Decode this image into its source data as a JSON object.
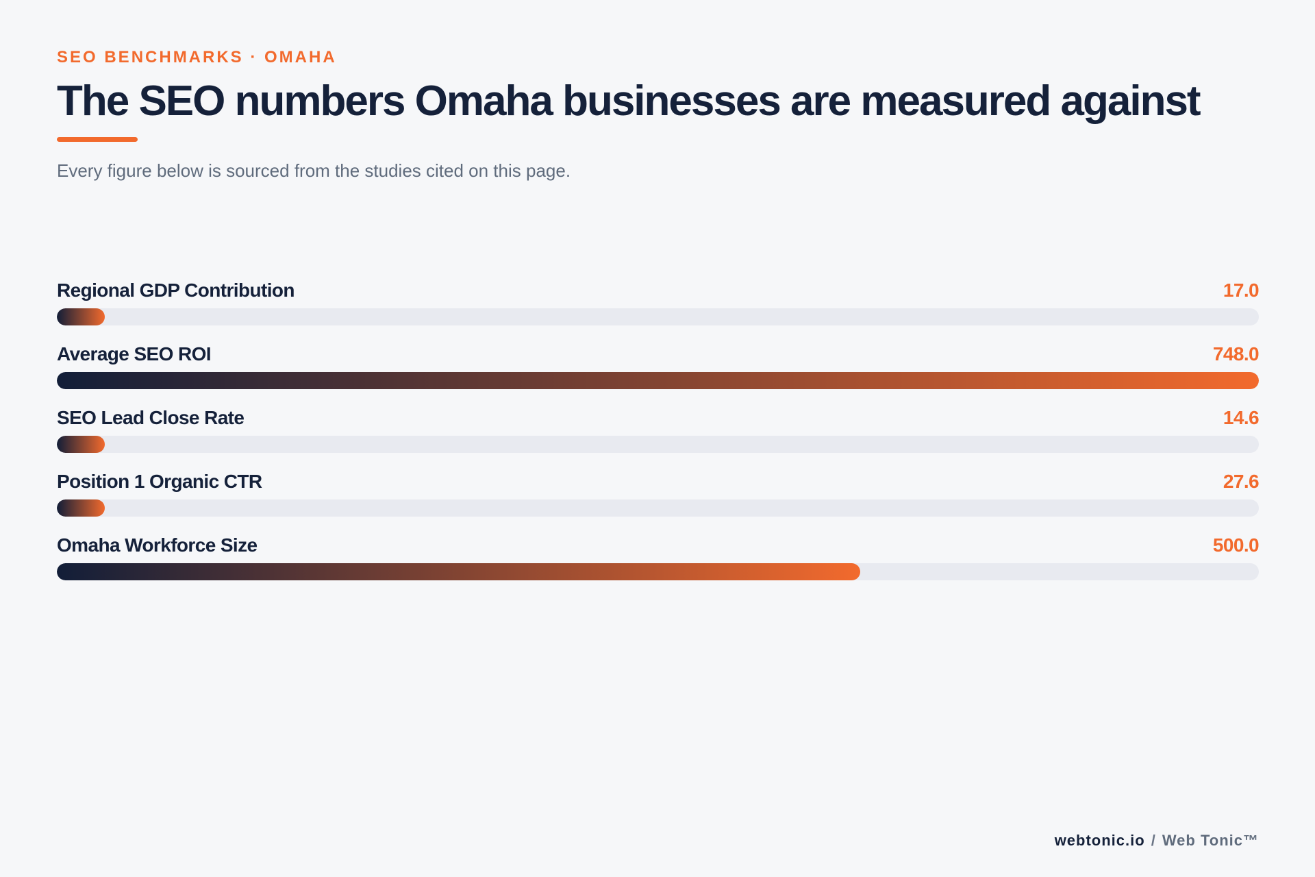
{
  "header": {
    "eyebrow": "SEO BENCHMARKS · OMAHA",
    "title": "The SEO numbers Omaha businesses are measured against",
    "subtitle": "Every figure below is sourced from the studies cited on this page."
  },
  "chart_data": {
    "type": "bar",
    "orientation": "horizontal",
    "categories": [
      "Regional GDP Contribution",
      "Average SEO ROI",
      "SEO Lead Close Rate",
      "Position 1 Organic CTR",
      "Omaha Workforce Size"
    ],
    "values": [
      17.0,
      748.0,
      14.6,
      27.6,
      500.0
    ],
    "value_labels": [
      "17.0",
      "748.0",
      "14.6",
      "27.6",
      "500.0"
    ],
    "xlim": [
      0,
      748.0
    ],
    "title": "",
    "xlabel": "",
    "ylabel": "",
    "grid": false,
    "legend": "none",
    "colors": {
      "gradient_start": "#121e38",
      "gradient_end": "#f26a2d",
      "track": "#e8eaf0",
      "value_text": "#f26a2d",
      "label_text": "#15213a"
    }
  },
  "footer": {
    "domain": "webtonic.io",
    "separator": "/",
    "brand": "Web Tonic™"
  }
}
